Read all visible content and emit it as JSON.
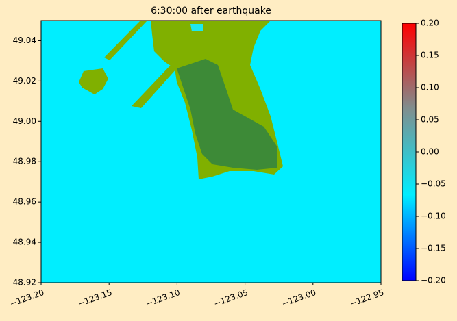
{
  "chart_data": {
    "type": "map",
    "title": "6:30:00 after earthquake",
    "xlim": [
      -123.2,
      -122.95
    ],
    "xticks": [
      {
        "value": -123.2,
        "label": "−123.20"
      },
      {
        "value": -123.15,
        "label": "−123.15"
      },
      {
        "value": -123.1,
        "label": "−123.10"
      },
      {
        "value": -123.05,
        "label": "−123.05"
      },
      {
        "value": -123.0,
        "label": "−123.00"
      },
      {
        "value": -122.95,
        "label": "−122.95"
      }
    ],
    "ylim": [
      48.92,
      49.05
    ],
    "yticks": [
      48.92,
      48.94,
      48.96,
      48.98,
      {
        "value": 49.0,
        "label": "49.00"
      },
      49.02,
      49.04
    ],
    "background": "#00eeff",
    "colorbar": {
      "clim": [
        -0.2,
        0.2
      ],
      "colors": [
        "#0000ff",
        "#00eeff",
        "#7f8f8f",
        "#ff0000"
      ],
      "ticks": [
        {
          "value": -0.2,
          "label": "−0.20"
        },
        {
          "value": -0.15,
          "label": "−0.15"
        },
        {
          "value": -0.1,
          "label": "−0.10"
        },
        {
          "value": -0.05,
          "label": "−0.05"
        },
        {
          "value": 0.0,
          "label": "0.00"
        },
        0.05,
        {
          "value": 0.1,
          "label": "0.10"
        },
        0.15,
        {
          "value": 0.2,
          "label": "0.20"
        }
      ]
    }
  }
}
